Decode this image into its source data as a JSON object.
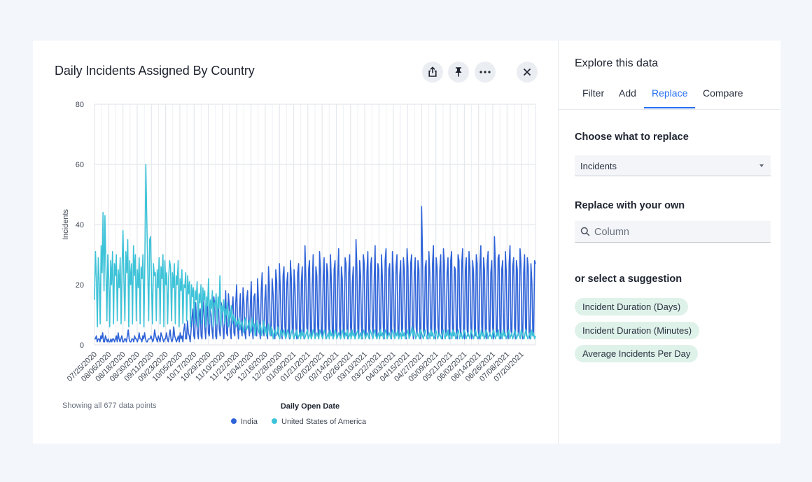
{
  "chart": {
    "title": "Daily Incidents Assigned By Country",
    "footer_note": "Showing all 677 data points",
    "toolbar": {
      "share_icon": "share-icon",
      "pin_icon": "pin-icon",
      "more_icon": "more-icon",
      "close_icon": "close-icon"
    }
  },
  "chart_data": {
    "type": "line",
    "title": "Daily Incidents Assigned By Country",
    "xlabel": "Daily Open Date",
    "ylabel": "Incidents",
    "ylim": [
      0,
      80
    ],
    "yticks": [
      "0",
      "20",
      "40",
      "60",
      "80"
    ],
    "x_start": "07/25/2020",
    "x_end": "07/27/2021",
    "xticks": [
      "07/25/2020",
      "08/06/2020",
      "08/18/2020",
      "08/30/2020",
      "09/11/2020",
      "09/23/2020",
      "10/05/2020",
      "10/17/2020",
      "10/29/2020",
      "11/10/2020",
      "11/22/2020",
      "12/04/2020",
      "12/16/2020",
      "12/28/2020",
      "01/09/2021",
      "01/21/2021",
      "02/02/2021",
      "02/14/2021",
      "02/26/2021",
      "03/10/2021",
      "03/22/2021",
      "04/03/2021",
      "04/15/2021",
      "04/27/2021",
      "05/09/2021",
      "05/21/2021",
      "06/02/2021",
      "06/14/2021",
      "06/26/2021",
      "07/08/2021",
      "07/20/2021"
    ],
    "grid": true,
    "legend_position": "bottom",
    "series": [
      {
        "name": "India",
        "color": "#2f63d8",
        "values": [
          2,
          2,
          3,
          1,
          2,
          2,
          1,
          3,
          2,
          4,
          1,
          1,
          3,
          2,
          1,
          2,
          1,
          1,
          2,
          1,
          2,
          2,
          1,
          2,
          3,
          1,
          4,
          2,
          1,
          2,
          3,
          1,
          1,
          2,
          2,
          1,
          3,
          5,
          2,
          1,
          1,
          2,
          2,
          1,
          3,
          2,
          2,
          1,
          2,
          4,
          2,
          2,
          1,
          3,
          2,
          4,
          2,
          1,
          1,
          2,
          2,
          2,
          3,
          2,
          1,
          2,
          5,
          3,
          2,
          1,
          3,
          2,
          1,
          4,
          3,
          2,
          1,
          2,
          2,
          4,
          2,
          1,
          3,
          5,
          2,
          1,
          2,
          6,
          3,
          2,
          1,
          2,
          3,
          1,
          4,
          2,
          3,
          1,
          5,
          7,
          2,
          2,
          8,
          4,
          3,
          1,
          5,
          9,
          12,
          3,
          2,
          14,
          8,
          4,
          2,
          10,
          12,
          3,
          2,
          15,
          11,
          6,
          2,
          9,
          14,
          4,
          3,
          12,
          10,
          5,
          2,
          16,
          13,
          3,
          2,
          11,
          15,
          5,
          3,
          14,
          12,
          6,
          2,
          10,
          18,
          4,
          3,
          17,
          13,
          5,
          2,
          12,
          16,
          4,
          3,
          14,
          20,
          6,
          2,
          11,
          17,
          5,
          3,
          19,
          14,
          4,
          2,
          15,
          18,
          6,
          3,
          13,
          21,
          5,
          2,
          16,
          17,
          4,
          3,
          22,
          14,
          5,
          2,
          18,
          24,
          6,
          3,
          15,
          20,
          4,
          2,
          26,
          19,
          5,
          3,
          22,
          17,
          6,
          2,
          25,
          21,
          4,
          3,
          27,
          18,
          5,
          2,
          23,
          26,
          6,
          3,
          20,
          24,
          4,
          2,
          28,
          22,
          5,
          3,
          25,
          19,
          6,
          2,
          24,
          27,
          4,
          3,
          21,
          26,
          5,
          2,
          33,
          22,
          6,
          3,
          25,
          28,
          4,
          2,
          20,
          30,
          5,
          3,
          26,
          23,
          6,
          2,
          31,
          25,
          4,
          3,
          22,
          29,
          5,
          2,
          27,
          24,
          6,
          3,
          30,
          21,
          4,
          2,
          25,
          28,
          5,
          3,
          23,
          32,
          6,
          2,
          26,
          22,
          4,
          3,
          29,
          27,
          5,
          2,
          24,
          30,
          6,
          3,
          21,
          26,
          4,
          2,
          35,
          25,
          5,
          3,
          28,
          23,
          6,
          2,
          30,
          27,
          4,
          3,
          24,
          31,
          5,
          2,
          26,
          29,
          6,
          3,
          22,
          33,
          4,
          2,
          27,
          25,
          5,
          3,
          30,
          22,
          6,
          2,
          28,
          32,
          4,
          3,
          25,
          27,
          5,
          2,
          31,
          24,
          6,
          3,
          26,
          30,
          4,
          2,
          23,
          28,
          5,
          3,
          29,
          25,
          6,
          2,
          32,
          26,
          4,
          3,
          27,
          30,
          5,
          2,
          24,
          29,
          6,
          3,
          28,
          25,
          4,
          2,
          46,
          30,
          5,
          3,
          26,
          28,
          6,
          2,
          31,
          24,
          4,
          3,
          27,
          33,
          5,
          2,
          29,
          26,
          6,
          3,
          25,
          30,
          4,
          2,
          32,
          27,
          5,
          3,
          24,
          29,
          6,
          2,
          28,
          31,
          4,
          3,
          26,
          25,
          5,
          2,
          30,
          28,
          6,
          3,
          27,
          32,
          4,
          2,
          25,
          29,
          5,
          3,
          31,
          26,
          6,
          2,
          28,
          24,
          4,
          3,
          30,
          27,
          5,
          2,
          26,
          33,
          6,
          3,
          29,
          25,
          4,
          2,
          27,
          31,
          5,
          3,
          24,
          28,
          6,
          2,
          36,
          26,
          4,
          3,
          29,
          30,
          5,
          2,
          25,
          28,
          6,
          3,
          31,
          24,
          4,
          2,
          27,
          33,
          5,
          3,
          26,
          29,
          6,
          2,
          28,
          25,
          4,
          3,
          32,
          27,
          5,
          2,
          24,
          30,
          6,
          3,
          29,
          26,
          4,
          2,
          27,
          21,
          5,
          3,
          28,
          27
        ]
      },
      {
        "name": "United States of America",
        "color": "#3ec3d8",
        "values": [
          15,
          31,
          22,
          6,
          29,
          21,
          7,
          33,
          24,
          44,
          18,
          43,
          26,
          8,
          30,
          22,
          6,
          28,
          20,
          31,
          7,
          27,
          23,
          30,
          8,
          25,
          19,
          29,
          7,
          26,
          38,
          21,
          8,
          31,
          24,
          35,
          6,
          28,
          20,
          27,
          7,
          33,
          23,
          30,
          8,
          25,
          19,
          29,
          7,
          26,
          22,
          30,
          6,
          28,
          60,
          42,
          26,
          8,
          35,
          36,
          20,
          7,
          27,
          23,
          24,
          8,
          25,
          19,
          29,
          7,
          26,
          22,
          30,
          6,
          28,
          20,
          24,
          7,
          22,
          28,
          26,
          8,
          24,
          19,
          27,
          7,
          23,
          20,
          28,
          6,
          22,
          18,
          25,
          7,
          20,
          19,
          24,
          8,
          23,
          17,
          21,
          6,
          20,
          16,
          19,
          7,
          18,
          15,
          21,
          6,
          17,
          14,
          20,
          7,
          19,
          15,
          18,
          6,
          16,
          13,
          22,
          7,
          15,
          12,
          18,
          6,
          14,
          13,
          17,
          7,
          16,
          12,
          23,
          6,
          13,
          11,
          15,
          7,
          12,
          10,
          14,
          6,
          11,
          9,
          13,
          7,
          10,
          8,
          9,
          6,
          8,
          7,
          9,
          5,
          7,
          8,
          6,
          4,
          8,
          9,
          5,
          6,
          7,
          8,
          4,
          5,
          9,
          6,
          7,
          3,
          6,
          8,
          5,
          4,
          7,
          6,
          3,
          5,
          8,
          4,
          6,
          3,
          5,
          7,
          4,
          3,
          6,
          5,
          2,
          4,
          5,
          3,
          4,
          6,
          3,
          2,
          5,
          4,
          3,
          5,
          4,
          2,
          3,
          5,
          4,
          3,
          2,
          4,
          5,
          3,
          2,
          4,
          3,
          5,
          2,
          3,
          4,
          2,
          5,
          3,
          4,
          2,
          3,
          4,
          5,
          2,
          3,
          4,
          2,
          3,
          5,
          4,
          2,
          3,
          4,
          3,
          2,
          5,
          4,
          3,
          2,
          4,
          5,
          3,
          2,
          3,
          4,
          2,
          5,
          3,
          4,
          2,
          3,
          5,
          4,
          2,
          3,
          4,
          3,
          2,
          4,
          5,
          3,
          2,
          4,
          3,
          5,
          2,
          3,
          4,
          2,
          5,
          3,
          4,
          2,
          3,
          4,
          5,
          2,
          3,
          4,
          2,
          3,
          5,
          4,
          2,
          3,
          4,
          3,
          2,
          5,
          4,
          3,
          2,
          4,
          5,
          3,
          2,
          3,
          4,
          2,
          5,
          3,
          4,
          2,
          3,
          5,
          4,
          2,
          3,
          4,
          3,
          2,
          4,
          5,
          3,
          2,
          4,
          3,
          5,
          2,
          3,
          4,
          2,
          5,
          3,
          4,
          2,
          3,
          4,
          5,
          2,
          3,
          4,
          6,
          3,
          5,
          4,
          2,
          3,
          4,
          3,
          2,
          5,
          4,
          3,
          2,
          4,
          5,
          3,
          2,
          3,
          4,
          2,
          5,
          3,
          4,
          2,
          3,
          5,
          4,
          2,
          3,
          4,
          3,
          2,
          4,
          5,
          3,
          2,
          4,
          3,
          5,
          2,
          3,
          4,
          2,
          5,
          3,
          4,
          2,
          3,
          4,
          5,
          2,
          3,
          4,
          2,
          3,
          5,
          4,
          2,
          3,
          4,
          3,
          2,
          5,
          4,
          3,
          2,
          4,
          5,
          3,
          2,
          3,
          4,
          2,
          5,
          3,
          4,
          2,
          3,
          5,
          4,
          2,
          3,
          4,
          3,
          2,
          4,
          5,
          3,
          2,
          4,
          3,
          5,
          2,
          3,
          4,
          2,
          5,
          3,
          4,
          2,
          3,
          4,
          5,
          2,
          3,
          4,
          2,
          3,
          5,
          4,
          2,
          3,
          4,
          3,
          2,
          5,
          4,
          3,
          2,
          4,
          5,
          3,
          2,
          3,
          4,
          2,
          5,
          3,
          4,
          2,
          3
        ]
      }
    ]
  },
  "side_panel": {
    "title": "Explore this data",
    "tabs": [
      {
        "label": "Filter"
      },
      {
        "label": "Add"
      },
      {
        "label": "Replace"
      },
      {
        "label": "Compare"
      }
    ],
    "active_tab": "Replace",
    "choose_label": "Choose what to replace",
    "select_value": "Incidents",
    "replace_label": "Replace with your own",
    "search_placeholder": "Column",
    "suggestion_label": "or select a suggestion",
    "suggestions": [
      {
        "label": "Incident Duration (Days)"
      },
      {
        "label": "Incident Duration (Minutes)"
      },
      {
        "label": "Average Incidents Per Day"
      }
    ]
  }
}
